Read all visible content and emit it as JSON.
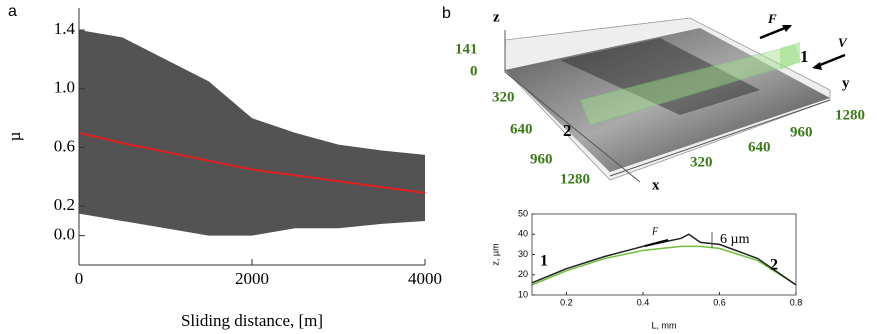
{
  "panel_labels": [
    "a",
    "b"
  ],
  "chart_data": [
    {
      "type": "scatter",
      "xlabel": "Sliding distance, [m]",
      "ylabel": "µ",
      "x": [
        0,
        500,
        1000,
        1500,
        2000,
        2500,
        3000,
        3500,
        4000
      ],
      "cloud": {
        "color": "#1a1a1a",
        "upper": [
          1.4,
          1.35,
          1.2,
          1.05,
          0.8,
          0.7,
          0.62,
          0.58,
          0.55
        ],
        "lower": [
          0.15,
          0.1,
          0.05,
          0.0,
          0.0,
          0.05,
          0.05,
          0.08,
          0.1
        ]
      },
      "series": [
        {
          "color": "#e02020",
          "values": [
            0.7,
            0.63,
            0.57,
            0.51,
            0.45,
            0.41,
            0.37,
            0.33,
            0.29
          ]
        }
      ],
      "xlim": [
        0,
        4000
      ],
      "xticks": [
        0,
        2000,
        4000
      ],
      "ylim": [
        -0.2,
        1.55
      ],
      "yticks": [
        {
          "value": 0.0,
          "label": "0.0"
        },
        0.2,
        0.6,
        {
          "value": 1.0,
          "label": "1.0"
        },
        1.4
      ],
      "frame": false
    },
    {
      "type": "line",
      "xlabel": "L, mm",
      "ylabel": "z, µm",
      "x": [
        0.11,
        0.2,
        0.3,
        0.4,
        0.45,
        0.5,
        0.52,
        0.55,
        0.6,
        0.7,
        0.8
      ],
      "series": [
        {
          "color": "#6fbf3a",
          "values": [
            15,
            22,
            28,
            32,
            33,
            34,
            34,
            34,
            33,
            27,
            15
          ]
        },
        {
          "color": "#222222",
          "values": [
            16,
            23,
            29,
            34,
            36,
            38,
            40,
            36,
            35,
            28,
            15
          ]
        }
      ],
      "xlim": [
        0.11,
        0.8
      ],
      "xticks": [
        0.2,
        0.4,
        0.6,
        0.8
      ],
      "ylim": [
        10,
        50
      ],
      "yticks": [
        10,
        20,
        30,
        40,
        50
      ],
      "frame": true,
      "annotations": [
        "F",
        "6 µm",
        "1",
        "2"
      ]
    }
  ],
  "surface": {
    "axis_labels": [
      "z",
      "x",
      "y"
    ],
    "z_ticks": [
      "141",
      "0"
    ],
    "x_ticks": [
      "320",
      "640",
      "960",
      "1280"
    ],
    "y_ticks": [
      "320",
      "640",
      "960",
      "1280"
    ],
    "annotations": [
      "F",
      "V",
      "1",
      "2"
    ]
  }
}
